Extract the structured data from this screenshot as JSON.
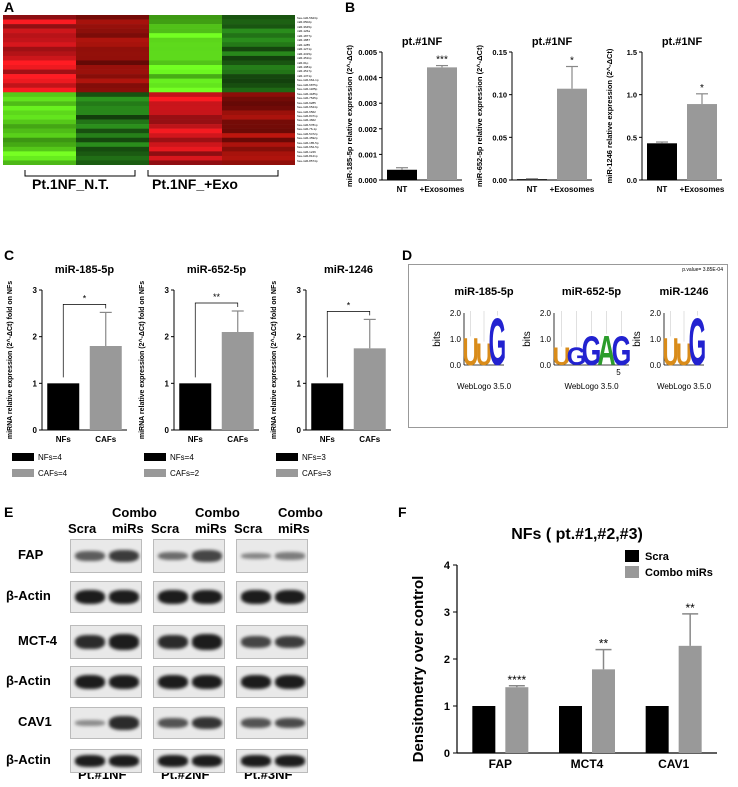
{
  "panel_letters": [
    "A",
    "B",
    "C",
    "D",
    "E",
    "F"
  ],
  "heatmap": {
    "groups": [
      "Pt.1NF_N.T.",
      "Pt.1NF_+Exo"
    ],
    "row_labels": [
      "hsa-miR-5623p",
      "miR-6502p",
      "miR-3645p",
      "miR-126a",
      "miR-1877p",
      "miR-1887",
      "miR-1285",
      "miR-1271p",
      "miR-4315p",
      "miR-4511p",
      "miR-61p",
      "miR-1981p",
      "miR-4517p",
      "miR-1371p",
      "hsa-miR-664-1p",
      "hsa-miR-6875p",
      "hsa-miR-1185p",
      "hsa-miR-4185p",
      "hsa-miR-7545p",
      "hsa-miR-9285",
      "hsa-miR-6544p",
      "hsa-miR-6562",
      "hsa-miR-8471p",
      "hsa-miR-4662",
      "hsa-miR-5781p",
      "hsa-miR-76-1p",
      "hsa-miR-5472p",
      "hsa-miR-4592p",
      "hsa-miR-185-5p",
      "hsa-miR-652-5p",
      "hsa-miR-1246",
      "hsa-miR-8121p",
      "hsa-miR-8574p"
    ]
  },
  "panel_b": [
    {
      "title": "pt.#1NF",
      "ylabel": "miR-185-5p relative expression (2^-ΔCt)",
      "categories": [
        "NT",
        "+Exosomes"
      ],
      "values": [
        0.0004,
        0.0044
      ],
      "errors": [
        8e-05,
        7e-05
      ],
      "ylim": [
        0,
        0.005
      ],
      "yticks": [
        "0.000",
        "0.001",
        "0.002",
        "0.003",
        "0.004",
        "0.005"
      ],
      "significance": "***"
    },
    {
      "title": "pt.#1NF",
      "ylabel": "miR-652-5p relative expression (2^-ΔCt)",
      "categories": [
        "NT",
        "+Exosomes"
      ],
      "values": [
        0.001,
        0.107
      ],
      "errors": [
        0.0005,
        0.026
      ],
      "ylim": [
        0,
        0.15
      ],
      "yticks": [
        "0.00",
        "0.05",
        "0.10",
        "0.15"
      ],
      "significance": "*"
    },
    {
      "title": "pt.#1NF",
      "ylabel": "miR-1246 relative expression (2^-ΔCt)",
      "categories": [
        "NT",
        "+Exosomes"
      ],
      "values": [
        0.43,
        0.89
      ],
      "errors": [
        0.015,
        0.12
      ],
      "ylim": [
        0,
        1.5
      ],
      "yticks": [
        "0.0",
        "0.5",
        "1.0",
        "1.5"
      ],
      "significance": "*"
    }
  ],
  "panel_c": [
    {
      "title": "miR-185-5p",
      "ylabel": "miRNA relative expression (2^-ΔCt) fold on NFs",
      "categories": [
        "NFs",
        "CAFs"
      ],
      "values": [
        1.0,
        1.8
      ],
      "errors": [
        0,
        0.72
      ],
      "ylim": [
        0,
        3
      ],
      "yticks": [
        "0",
        "1",
        "2",
        "3"
      ],
      "significance": "*",
      "legend": [
        "NFs=4",
        "CAFs=4"
      ]
    },
    {
      "title": "miR-652-5p",
      "ylabel": "miRNA relative expression (2^-ΔCt) fold on NFs",
      "categories": [
        "NFs",
        "CAFs"
      ],
      "values": [
        1.0,
        2.1
      ],
      "errors": [
        0,
        0.45
      ],
      "ylim": [
        0,
        3
      ],
      "yticks": [
        "0",
        "1",
        "2",
        "3"
      ],
      "significance": "**",
      "legend": [
        "NFs=4",
        "CAFs=2"
      ]
    },
    {
      "title": "miR-1246",
      "ylabel": "miRNA relative expression (2^-ΔCt) fold on NFs",
      "categories": [
        "NFs",
        "CAFs"
      ],
      "values": [
        1.0,
        1.75
      ],
      "errors": [
        0,
        0.62
      ],
      "ylim": [
        0,
        3
      ],
      "yticks": [
        "0",
        "1",
        "2",
        "3"
      ],
      "significance": "*",
      "legend": [
        "NFs=3",
        "CAFs=3"
      ]
    }
  ],
  "panel_d": {
    "pvalue": "p.value= 3.85E-04",
    "logos": [
      {
        "title": "miR-185-5p",
        "ylabel": "bits",
        "letters": [
          "U",
          "U",
          "G"
        ],
        "credit": "WebLogo 3.5.0"
      },
      {
        "title": "miR-652-5p",
        "ylabel": "bits",
        "letters": [
          "U",
          "G",
          "G",
          "A",
          "G"
        ],
        "tick": "5",
        "credit": "WebLogo 3.5.0"
      },
      {
        "title": "miR-1246",
        "ylabel": "bits",
        "letters": [
          "U",
          "U",
          "G"
        ],
        "credit": "WebLogo 3.5.0"
      }
    ],
    "yticks": [
      "0.0",
      "1.0",
      "2.0"
    ]
  },
  "panel_e": {
    "col_labels": [
      "Scra",
      "Combo miRs"
    ],
    "combo_top": "Combo",
    "combo_bottom": "miRs",
    "row_labels": [
      "FAP",
      "β-Actin",
      "MCT-4",
      "β-Actin",
      "CAV1",
      "β-Actin"
    ],
    "patients": [
      "Pt.#1NF",
      "Pt.#2NF",
      "Pt.#3NF"
    ]
  },
  "chart_data": {
    "type": "bar",
    "title": "NFs ( pt.#1,#2,#3)",
    "ylabel": "Densitometry over control",
    "xlabel": "",
    "categories": [
      "FAP",
      "MCT4",
      "CAV1"
    ],
    "series": [
      {
        "name": "Scra",
        "values": [
          1.0,
          1.0,
          1.0
        ],
        "errors": [
          0,
          0,
          0
        ],
        "color": "#000000"
      },
      {
        "name": "Combo miRs",
        "values": [
          1.4,
          1.78,
          2.28
        ],
        "errors": [
          0.03,
          0.42,
          0.68
        ],
        "color": "#999999"
      }
    ],
    "significance": [
      "****",
      "**",
      "**"
    ],
    "ylim": [
      0,
      4
    ],
    "yticks": [
      "0",
      "1",
      "2",
      "3",
      "4"
    ],
    "legend_position": "top-right"
  }
}
